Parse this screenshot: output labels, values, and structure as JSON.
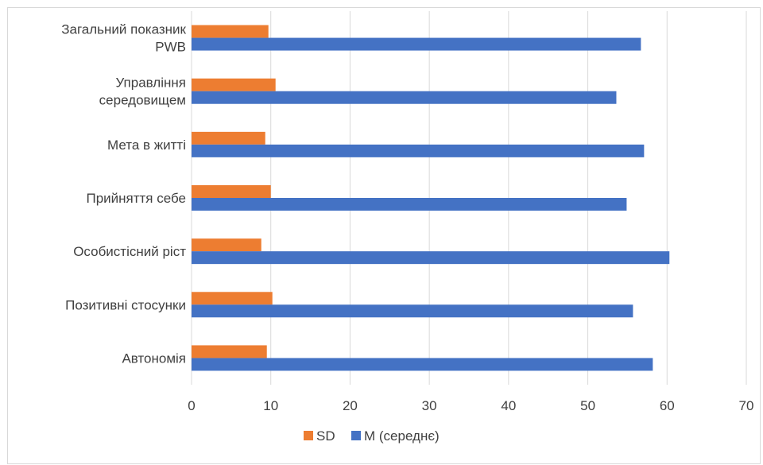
{
  "chart_data": {
    "type": "bar",
    "orientation": "horizontal",
    "categories": [
      "Загальний показник PWB",
      "Управління середовищем",
      "Мета в житті",
      "Прийняття себе",
      "Особистісний ріст",
      "Позитивні стосунки",
      "Автономія"
    ],
    "series": [
      {
        "name": "SD",
        "color": "#ED7D31",
        "values": [
          9.7,
          10.6,
          9.3,
          10.0,
          8.8,
          10.2,
          9.5
        ]
      },
      {
        "name": "M (середнє)",
        "color": "#4472C4",
        "values": [
          56.7,
          53.6,
          57.1,
          54.9,
          60.3,
          55.7,
          58.2
        ]
      }
    ],
    "xlim": [
      0,
      70
    ],
    "xticks": [
      "0",
      "10",
      "20",
      "30",
      "40",
      "50",
      "60",
      "70"
    ],
    "grid": true,
    "legend_position": "bottom",
    "title": "",
    "xlabel": "",
    "ylabel": ""
  }
}
